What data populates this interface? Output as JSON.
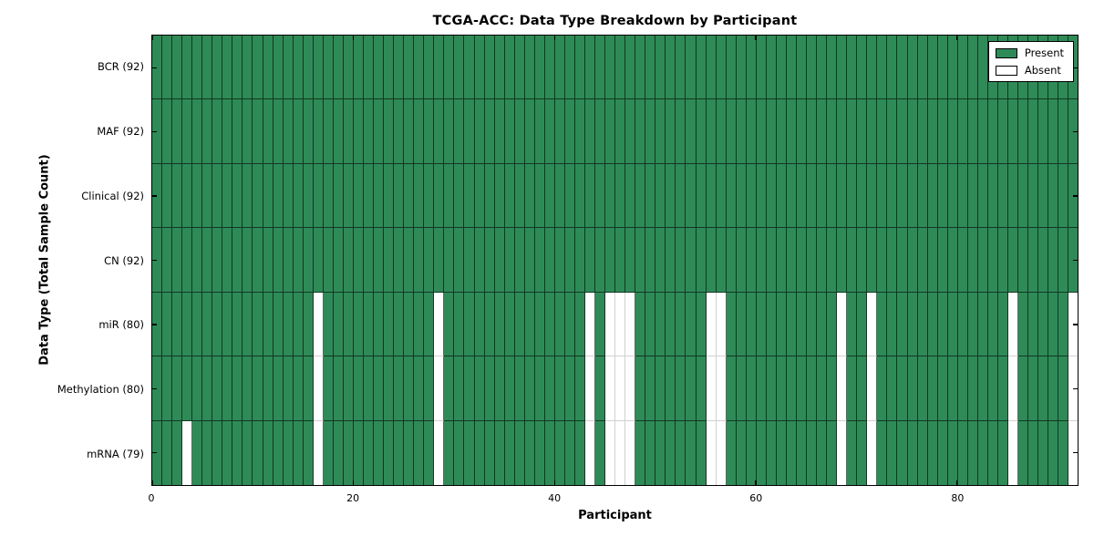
{
  "chart_data": {
    "type": "heatmap",
    "title": "TCGA-ACC: Data Type Breakdown by Participant",
    "xlabel": "Participant",
    "ylabel": "Data Type (Total Sample Count)",
    "n_participants": 92,
    "x_range": [
      0,
      92
    ],
    "x_ticks": [
      0,
      20,
      40,
      60,
      80
    ],
    "grid": false,
    "legend_position": "upper right",
    "legend": [
      {
        "label": "Present",
        "color": "#2e8b57"
      },
      {
        "label": "Absent",
        "color": "#ffffff"
      }
    ],
    "rows": [
      {
        "label": "BCR (92)",
        "data_type": "BCR",
        "present_count": 92,
        "absent_participants": []
      },
      {
        "label": "MAF (92)",
        "data_type": "MAF",
        "present_count": 92,
        "absent_participants": []
      },
      {
        "label": "Clinical (92)",
        "data_type": "Clinical",
        "present_count": 92,
        "absent_participants": []
      },
      {
        "label": "CN (92)",
        "data_type": "CN",
        "present_count": 92,
        "absent_participants": []
      },
      {
        "label": "miR (80)",
        "data_type": "miR",
        "present_count": 80,
        "absent_participants": [
          16,
          28,
          43,
          45,
          46,
          47,
          55,
          56,
          68,
          71,
          85,
          91
        ]
      },
      {
        "label": "Methylation (80)",
        "data_type": "Methylation",
        "present_count": 80,
        "absent_participants": [
          16,
          28,
          43,
          45,
          46,
          47,
          55,
          56,
          68,
          71,
          85,
          91
        ]
      },
      {
        "label": "mRNA (79)",
        "data_type": "mRNA",
        "present_count": 79,
        "absent_participants": [
          3,
          16,
          28,
          43,
          45,
          46,
          47,
          55,
          56,
          68,
          71,
          85,
          91
        ]
      }
    ],
    "colors": {
      "present": "#2e8b57",
      "absent": "#ffffff",
      "border_dark": "rgba(0,0,0,0.6)",
      "border_light": "rgba(0,0,0,0.18)",
      "spine": "#000000"
    }
  }
}
